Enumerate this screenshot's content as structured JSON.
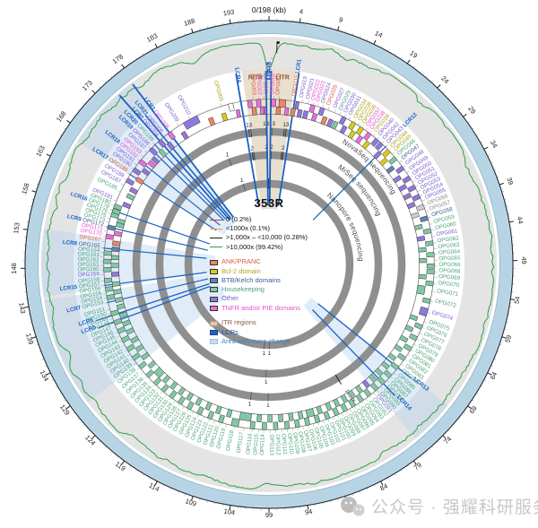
{
  "title": "353R",
  "watermark": {
    "text": "公众号 · 强耀科研服务",
    "icon": "wechat-icon"
  },
  "genome": {
    "length_kb": 198,
    "unit_label": "0/198 (kb)",
    "ticks_kb": [
      4,
      9,
      14,
      19,
      24,
      29,
      34,
      39,
      44,
      49,
      54,
      59,
      64,
      69,
      74,
      79,
      84,
      89,
      94,
      99,
      104,
      109,
      114,
      119,
      124,
      129,
      134,
      139,
      143,
      148,
      153,
      158,
      163,
      168,
      173,
      178,
      183,
      188,
      193
    ]
  },
  "sequencing_rings": [
    {
      "name": "NovaSeq sequencing"
    },
    {
      "name": "MiSeq sequencing"
    },
    {
      "name": "Nanopore sequencing"
    }
  ],
  "ring_annotations": [
    {
      "ring": 0,
      "kb": 193.5,
      "t": "13"
    },
    {
      "ring": 0,
      "kb": 197.3,
      "t": "13"
    },
    {
      "ring": 0,
      "kb": 0.7,
      "t": "13"
    },
    {
      "ring": 0,
      "kb": 3.8,
      "t": "13"
    },
    {
      "ring": 1,
      "kb": 193.5,
      "t": "2"
    },
    {
      "ring": 1,
      "kb": 197.3,
      "t": "2"
    },
    {
      "ring": 1,
      "kb": 0.7,
      "t": "2"
    },
    {
      "ring": 1,
      "kb": 3.8,
      "t": "2"
    },
    {
      "ring": 0,
      "kb": 99.2,
      "t": "1"
    },
    {
      "ring": 0,
      "kb": 103.3,
      "t": "1"
    },
    {
      "ring": 1,
      "kb": 99.8,
      "t": "1"
    },
    {
      "ring": 2,
      "kb": 98.9,
      "t": "1"
    },
    {
      "ring": 2,
      "kb": 100.8,
      "t": "1"
    },
    {
      "ring": 1,
      "kb": 186.6,
      "t": "1"
    },
    {
      "ring": 2,
      "kb": 188.2,
      "t": "1"
    },
    {
      "ring": 0,
      "kb": 81.9,
      "t": "14576",
      "radial": true
    }
  ],
  "legend": {
    "coverage_lines": [
      {
        "label": "0 (0.2%)",
        "color": "#D93025"
      },
      {
        "label": "<1000x (0.1%)",
        "color": "#F0A050"
      },
      {
        "label": ">1,000x – <10,000 (0.28%)",
        "color": "#1A1A1A"
      },
      {
        "label": ">10,000x (99.42%)",
        "color": "#2FA043"
      }
    ],
    "categories": [
      {
        "key": "a",
        "label": "ANK/PRANC",
        "box": "#EE8465",
        "text": "#E25A3C"
      },
      {
        "key": "b",
        "label": "Bcl-2 domain",
        "box": "#D8CA1E",
        "text": "#AFA313"
      },
      {
        "key": "k",
        "label": "BTB/Kelch domains",
        "box": "#5F86AD",
        "text": "#3A5F8F"
      },
      {
        "key": "h",
        "label": "Housekeeping",
        "box": "#82C7A5",
        "text": "#4FA27C"
      },
      {
        "key": "o",
        "label": "Other",
        "box": "#9178DD",
        "text": "#7A5ED1"
      },
      {
        "key": "t",
        "label": "TNFR and/or PIE domains",
        "box": "#EA6FD8",
        "text": "#E253CE"
      }
    ],
    "aux_categories": {
      "g": {
        "box": "#CFCFCF",
        "text": "#8C8C8C"
      },
      "w": {
        "box": "#FFFFFF",
        "text": "#8C8C8C"
      }
    },
    "regions": [
      {
        "key": "itr",
        "label": "ITR regions",
        "box": "#DCCBB0",
        "text": "#8A5A3A"
      },
      {
        "key": "lcr",
        "label": "LCRs",
        "box": "#1B62C4",
        "text": "#1B55AB"
      },
      {
        "key": "change",
        "label": "Area with more change",
        "box": "#C9DCF0",
        "text": "#3F7EC6"
      }
    ]
  },
  "itr_sectors": [
    [
      193.6,
      198
    ],
    [
      0,
      4.4
    ]
  ],
  "itr_labels": [
    {
      "t": "RITR",
      "kb": 195.7
    },
    {
      "t": "LITR",
      "kb": 2.3
    }
  ],
  "change_areas": [
    [
      166.5,
      177.5
    ],
    [
      144,
      153.5
    ],
    [
      128,
      143.5
    ],
    [
      70.5,
      77
    ]
  ],
  "lcr_standalone": [
    {
      "n": "LCR10",
      "kb": 0.35,
      "r": [
        66,
        216
      ],
      "w": 1.8
    },
    {
      "n": "LCR4",
      "kb": 192.6,
      "r": [
        66,
        216
      ],
      "w": 1.8
    },
    {
      "n": "LCR11",
      "kb": 197.5,
      "r": [
        66,
        216
      ],
      "w": 1.8
    },
    {
      "n": "LCR13",
      "kb": 70.8,
      "r": [
        70,
        203
      ],
      "w": 1.3
    },
    {
      "n": "LCR14",
      "kb": 74.9,
      "r": [
        70,
        203
      ],
      "w": 1.3
    },
    {
      "n": "LCR5",
      "kb": 137.3,
      "r": [
        70,
        203
      ],
      "w": 1.3
    },
    {
      "n": "LCR6",
      "kb": 138.6,
      "r": [
        70,
        203
      ],
      "w": 1.3
    }
  ],
  "lcr_line_overrides": {
    "LCR1": [
      66,
      216,
      1.8
    ],
    "LCR21": [
      66,
      216,
      1.6
    ],
    "LCR2": [
      66,
      252,
      1.8
    ],
    "LCR3": [
      66,
      252,
      1.8
    ]
  },
  "genes_columns": [
    "name",
    "kb",
    "category",
    "lcr_tag",
    "width_kb"
  ],
  "genes": [
    [
      "OPG002",
      0.9,
      "t"
    ],
    [
      "OPG003",
      1.9,
      "a"
    ],
    [
      "OPG015",
      4.9,
      "a",
      "LCR1"
    ],
    [
      "OPG019",
      6.3,
      "o"
    ],
    [
      "OPG021",
      7.5,
      "o"
    ],
    [
      "OPG022",
      8.5,
      "t"
    ],
    [
      "OPG023",
      9.4,
      "t"
    ],
    [
      "OPG024",
      10.4,
      "o"
    ],
    [
      "OPG025",
      11.5,
      "a"
    ],
    [
      "OPG027",
      12.8,
      "o"
    ],
    [
      "OPG029",
      13.9,
      "h"
    ],
    [
      "OPG030",
      14.9,
      "o"
    ],
    [
      "OPG031",
      15.9,
      "o"
    ],
    [
      "OPG034",
      17.0,
      "b"
    ],
    [
      "OPG035",
      17.9,
      "b"
    ],
    [
      "OPG036",
      18.8,
      "b"
    ],
    [
      "OPG037",
      19.7,
      "t"
    ],
    [
      "OPG038",
      20.6,
      "t"
    ],
    [
      "OPG039",
      21.5,
      "b"
    ],
    [
      "OPG040",
      22.5,
      "o"
    ],
    [
      "OPG042",
      23.6,
      "o"
    ],
    [
      "OPG043",
      24.6,
      "o",
      "LCR12"
    ],
    [
      "OPG044",
      25.6,
      "b"
    ],
    [
      "OPG045",
      26.5,
      "b"
    ],
    [
      "OPG046",
      27.5,
      "h"
    ],
    [
      "OPG047",
      28.6,
      "k"
    ],
    [
      "OPG048",
      29.8,
      "o"
    ],
    [
      "OPG049",
      31.0,
      "o"
    ],
    [
      "OPG050",
      32.1,
      "o"
    ],
    [
      "OPG051",
      33.1,
      "o"
    ],
    [
      "OPG052",
      34.1,
      "o"
    ],
    [
      "OPG053",
      35.1,
      "o"
    ],
    [
      "OPG054",
      36.1,
      "o"
    ],
    [
      "OPG055",
      37.1,
      "o"
    ],
    [
      "OPG056",
      38.2,
      "g"
    ],
    [
      "OPG057",
      39.3,
      "g"
    ],
    [
      "OPG058",
      40.5,
      "k"
    ],
    [
      "OPG059",
      41.8,
      "h"
    ],
    [
      "OPG060",
      43.0,
      "h"
    ],
    [
      "OPG061",
      44.2,
      "o"
    ],
    [
      "OPG062",
      45.4,
      "h"
    ],
    [
      "OPG063",
      46.5,
      "h"
    ],
    [
      "OPG064",
      47.6,
      "h"
    ],
    [
      "OPG065",
      48.7,
      "h"
    ],
    [
      "OPG066",
      49.8,
      "h"
    ],
    [
      "OPG068",
      50.9,
      "h"
    ],
    [
      "OPG069",
      52.0,
      "h"
    ],
    [
      "OPG070",
      53.2,
      "h"
    ],
    [
      "OPG071",
      54.7,
      "h",
      null,
      1.7
    ],
    [
      "OPG072",
      56.6,
      "h"
    ],
    [
      "OPG074",
      58.8,
      "o",
      null,
      1.5
    ],
    [
      "OPG075",
      60.6,
      "h"
    ],
    [
      "OPG076",
      61.8,
      "h"
    ],
    [
      "OPG077",
      63.0,
      "h"
    ],
    [
      "OPG078",
      64.2,
      "h"
    ],
    [
      "OPG079",
      65.4,
      "h"
    ],
    [
      "OPG080",
      66.5,
      "h"
    ],
    [
      "OPG081",
      67.6,
      "h"
    ],
    [
      "OPG082",
      68.7,
      "h"
    ],
    [
      "OPG083",
      69.8,
      "h"
    ],
    [
      "OPG084",
      70.9,
      "h"
    ],
    [
      "OPG085",
      72.0,
      "h"
    ],
    [
      "OPG086",
      73.0,
      "h"
    ],
    [
      "OPG087",
      73.9,
      "h"
    ],
    [
      "OPG088",
      74.8,
      "h"
    ],
    [
      "OPG089",
      75.7,
      "h"
    ],
    [
      "OPG090",
      76.6,
      "h"
    ],
    [
      "OPG091",
      77.5,
      "o"
    ],
    [
      "OPG092",
      78.4,
      "h"
    ],
    [
      "OPG093",
      79.3,
      "h"
    ],
    [
      "OPG094",
      80.2,
      "h"
    ],
    [
      "OPG095",
      81.1,
      "h"
    ],
    [
      "OPG096",
      82.0,
      "h"
    ],
    [
      "OPG097",
      82.9,
      "h"
    ],
    [
      "OPG098",
      83.8,
      "h"
    ],
    [
      "OPG099",
      84.7,
      "h"
    ],
    [
      "OPG100",
      85.6,
      "h"
    ],
    [
      "OPG101",
      86.5,
      "h"
    ],
    [
      "OPG102",
      87.5,
      "h"
    ],
    [
      "OPG103",
      88.5,
      "h"
    ],
    [
      "OPG104",
      89.5,
      "h"
    ],
    [
      "OPG105",
      90.5,
      "h",
      null,
      1.5
    ],
    [
      "OPG106",
      91.5,
      "h"
    ],
    [
      "OPG107",
      92.5,
      "h"
    ],
    [
      "OPG108",
      93.5,
      "h"
    ],
    [
      "OPG109",
      94.5,
      "h"
    ],
    [
      "OPG110",
      95.5,
      "h"
    ],
    [
      "OPG111",
      96.6,
      "h"
    ],
    [
      "OPG112",
      97.7,
      "h"
    ],
    [
      "OPG113",
      98.8,
      "h"
    ],
    [
      "OPG114",
      99.9,
      "h"
    ],
    [
      "OPG115",
      101.0,
      "h"
    ],
    [
      "OPG116",
      102.2,
      "h"
    ],
    [
      "OPG117",
      103.8,
      "h",
      null,
      2.3
    ],
    [
      "OPG118",
      105.6,
      "h",
      null,
      1.4
    ],
    [
      "OPG119",
      107.2,
      "h"
    ],
    [
      "OPG120",
      108.4,
      "h"
    ],
    [
      "OPG121",
      109.5,
      "h"
    ],
    [
      "OPG122",
      110.6,
      "h"
    ],
    [
      "OPG123",
      111.7,
      "h"
    ],
    [
      "OPG124",
      112.8,
      "h"
    ],
    [
      "OPG125",
      113.9,
      "h"
    ],
    [
      "OPG126",
      115.0,
      "h"
    ],
    [
      "OPG127",
      116.0,
      "h"
    ],
    [
      "OPG128",
      117.0,
      "h"
    ],
    [
      "OPG129",
      118.0,
      "h"
    ],
    [
      "OPG130",
      119.0,
      "h"
    ],
    [
      "OPG131",
      120.0,
      "h"
    ],
    [
      "OPG132",
      121.0,
      "h"
    ],
    [
      "OPG133",
      122.0,
      "h"
    ],
    [
      "OPG134",
      123.0,
      "h"
    ],
    [
      "OPG135",
      124.0,
      "h",
      null,
      1.6
    ],
    [
      "OPG136",
      125.1,
      "h"
    ],
    [
      "OPG137",
      126.2,
      "h"
    ],
    [
      "OPG138",
      127.3,
      "h"
    ],
    [
      "OPG139",
      128.4,
      "h"
    ],
    [
      "OPG140",
      129.4,
      "h"
    ],
    [
      "OPG141",
      130.4,
      "h"
    ],
    [
      "OPG142",
      131.4,
      "h"
    ],
    [
      "OPG143",
      132.4,
      "h"
    ],
    [
      "OPG144",
      133.4,
      "h"
    ],
    [
      "OPG145",
      134.4,
      "h"
    ],
    [
      "OPG146",
      135.3,
      "h"
    ],
    [
      "OPG147",
      136.2,
      "h"
    ],
    [
      "OPG148",
      137.1,
      "h"
    ],
    [
      "OPG149",
      138.0,
      "h"
    ],
    [
      "OPG150",
      138.9,
      "h"
    ],
    [
      "OPG151",
      139.8,
      "h"
    ],
    [
      "OPG153",
      141.2,
      "h",
      "LCR7"
    ],
    [
      "OPG154",
      142.1,
      "h"
    ],
    [
      "OPG155",
      142.9,
      "h"
    ],
    [
      "OPG156",
      143.7,
      "h"
    ],
    [
      "OPG157",
      144.5,
      "h",
      "LCR15"
    ],
    [
      "OPG158",
      145.4,
      "h"
    ],
    [
      "OPG159",
      146.5,
      "o"
    ],
    [
      "OPG160",
      147.5,
      "h"
    ],
    [
      "OPG161",
      148.3,
      "h"
    ],
    [
      "OPG162",
      149.1,
      "h"
    ],
    [
      "OPG163",
      149.9,
      "h"
    ],
    [
      "OPG164",
      150.7,
      "h"
    ],
    [
      "OPG165",
      151.6,
      "k",
      "LCR8"
    ],
    [
      "OPG167",
      152.8,
      "a"
    ],
    [
      "OPG170",
      153.9,
      "t"
    ],
    [
      "OPG171",
      154.8,
      "t"
    ],
    [
      "OPG172",
      155.7,
      "k",
      "LCR9"
    ],
    [
      "OPG173",
      156.6,
      "h"
    ],
    [
      "OPG175",
      157.4,
      "h"
    ],
    [
      "OPG176",
      158.2,
      "h"
    ],
    [
      "OPG178",
      159.0,
      "h",
      "LCR16"
    ],
    [
      "OPG180",
      159.9,
      "h"
    ],
    [
      "OPG181",
      160.9,
      "o"
    ],
    [
      "OPG185",
      162.8,
      "h"
    ],
    [
      "OPG187",
      164.2,
      "o"
    ],
    [
      "OPG188",
      165.4,
      "o"
    ],
    [
      "OPG189",
      166.6,
      "a",
      "LCR17"
    ],
    [
      "OPG190",
      167.8,
      "o"
    ],
    [
      "OPG191",
      168.8,
      "o"
    ],
    [
      "OPG192",
      169.8,
      "t",
      "LCR18"
    ],
    [
      "OPG193",
      170.8,
      "t"
    ],
    [
      "OPG197",
      171.9,
      "o"
    ],
    [
      "OPG198",
      172.9,
      "o",
      "LCR19"
    ],
    [
      "OPG199",
      174.0,
      "h",
      "LCR20"
    ],
    [
      "OPG204",
      175.2,
      "o",
      "LCR2"
    ],
    [
      "OPG205",
      176.2,
      "o",
      "LCR21"
    ],
    [
      "OPG208",
      177.6,
      "t",
      "LCR3"
    ],
    [
      "OPG209",
      179.8,
      "o"
    ],
    [
      "OPG210",
      182.3,
      "o",
      null,
      3.0
    ],
    [
      "OPG005",
      188.8,
      "b"
    ],
    [
      "OPG003",
      195.0,
      "a"
    ],
    [
      "OPG002",
      196.0,
      "t"
    ],
    [
      "OPG001",
      197.1,
      "o"
    ]
  ],
  "extra_boxes": [
    [
      2.6,
      "a",
      1.3
    ],
    [
      3.6,
      "t",
      0.7
    ],
    [
      5.5,
      "o",
      0.6
    ],
    [
      186.0,
      "a",
      0.9
    ],
    [
      190.6,
      "w",
      0.9
    ],
    [
      191.7,
      "t",
      0.7
    ],
    [
      194.3,
      "t",
      0.8
    ],
    [
      196.6,
      "t",
      0.7
    ]
  ],
  "coverage_dips": [
    [
      197.8,
      26,
      0.45
    ],
    [
      0.45,
      14,
      0.4
    ],
    [
      1.1,
      6,
      0.35
    ],
    [
      186.8,
      6,
      0.8
    ],
    [
      178.3,
      4,
      0.6
    ],
    [
      156.8,
      4,
      0.7
    ],
    [
      135.2,
      8,
      0.9
    ],
    [
      131.0,
      5,
      0.7
    ],
    [
      120.5,
      3,
      0.6
    ],
    [
      99.4,
      5,
      0.7
    ],
    [
      81.9,
      5,
      0.6
    ],
    [
      47.2,
      3,
      0.8
    ],
    [
      23.8,
      3,
      0.7
    ],
    [
      11.5,
      3,
      0.6
    ],
    [
      161.0,
      3,
      0.6
    ],
    [
      142.0,
      3,
      0.6
    ]
  ],
  "chart_data": {
    "type": "line",
    "title": "353R",
    "x_axis": {
      "label": "0/198 (kb)",
      "range_kb": [
        0,
        198
      ],
      "tick_interval_kb": 5
    },
    "tracks": [
      "genome scale (kb)",
      "read-coverage line (green)",
      "gene/ORF boxes colored by functional category",
      "NovaSeq sequencing ring",
      "MiSeq sequencing ring",
      "Nanopore sequencing ring"
    ],
    "coverage_distribution_pct": {
      "0x": 0.2,
      "<1000x": 0.1,
      ">1,000x-<10,000x": 0.28,
      ">10,000x": 99.42
    },
    "legend_position": "center"
  }
}
